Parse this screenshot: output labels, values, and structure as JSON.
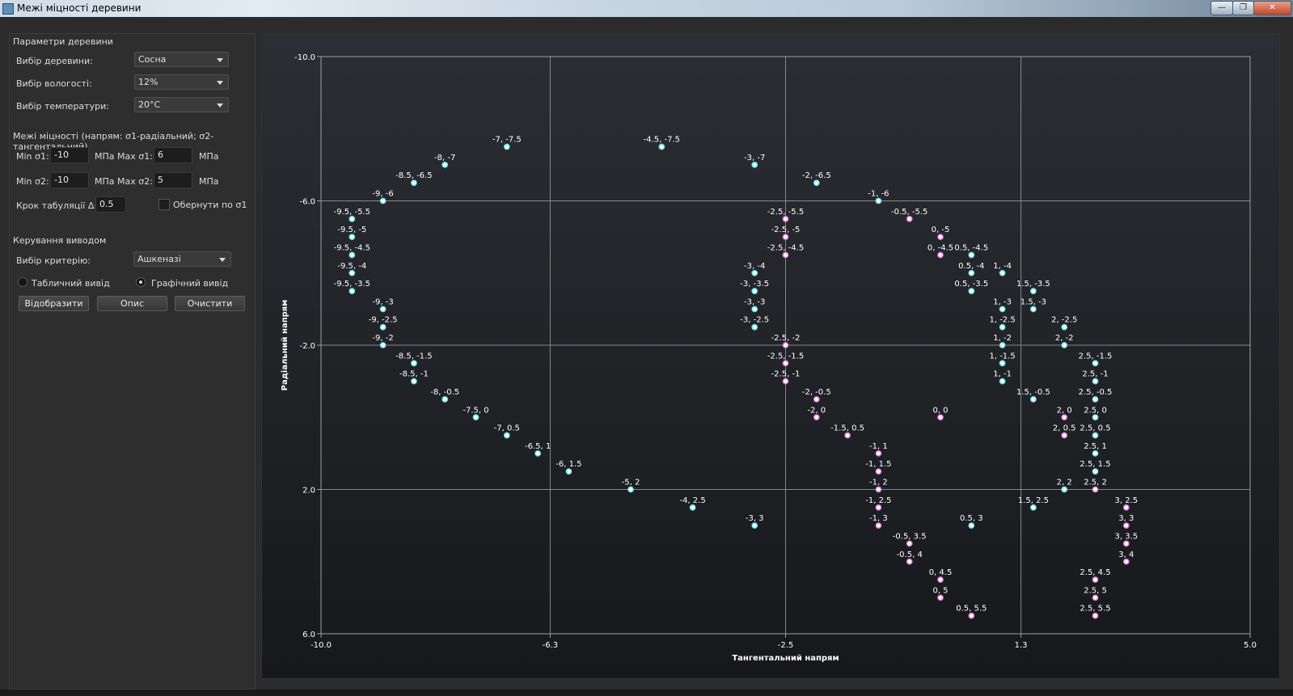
{
  "window": {
    "title": "Межі міцності деревини",
    "controls": {
      "minimize": "—",
      "maximize": "❐",
      "close": "✕"
    }
  },
  "wood": {
    "group_title": "Параметри деревини",
    "species_label": "Вибір деревини:",
    "species_value": "Сосна",
    "humidity_label": "Вибір вологості:",
    "humidity_value": "12%",
    "temperature_label": "Вибір температури:",
    "temperature_value": "20°C"
  },
  "limits": {
    "group_title": "Межі міцності (напрям: σ1-радіальний; σ2-тангентальний)",
    "min_s1_label": "Min σ1:",
    "min_s1": "-10",
    "max_s1_label": "Max σ1:",
    "max_s1": "6",
    "min_s2_label": "Min σ2:",
    "min_s2": "-10",
    "max_s2_label": "Max σ2:",
    "max_s2": "5",
    "unit": "МПа",
    "step_label": "Крок табуляції Δ:",
    "step": "0.5",
    "invert_label": "Обернути по σ1"
  },
  "output": {
    "group_title": "Керування виводом",
    "criterion_label": "Вибір критерію:",
    "criterion_value": "Ашкеназі",
    "table_radio": "Табличний вивід",
    "graph_radio": "Графічний вивід",
    "show_button": "Відобразити",
    "describe_button": "Опис",
    "clear_button": "Очистити"
  },
  "colors": {
    "cyan": "#5fe0e6",
    "magenta": "#e070d8",
    "grid": "#a0a0a0",
    "axis_text": "#ffffff"
  },
  "chart_data": {
    "type": "scatter",
    "xlabel": "Тангентальний напрям",
    "ylabel": "Радіальний напрям",
    "xlim": [
      -10,
      5
    ],
    "ylim": [
      -10,
      6
    ],
    "y_inverted": true,
    "xticks": [
      "-10.0",
      "-6.3",
      "-2.5",
      "1.3",
      "5.0"
    ],
    "yticks": [
      "-10.0",
      "-6.0",
      "-2.0",
      "2.0",
      "6.0"
    ],
    "series": [
      {
        "name": "cyan",
        "color": "#5fe0e6",
        "points": [
          [
            -7,
            -7.5
          ],
          [
            -8,
            -7
          ],
          [
            -8.5,
            -6.5
          ],
          [
            -9,
            -6
          ],
          [
            -9.5,
            -5.5
          ],
          [
            -9.5,
            -5
          ],
          [
            -9.5,
            -4.5
          ],
          [
            -9.5,
            -4
          ],
          [
            -9.5,
            -3.5
          ],
          [
            -9,
            -3
          ],
          [
            -9,
            -2.5
          ],
          [
            -9,
            -2
          ],
          [
            -8.5,
            -1.5
          ],
          [
            -8.5,
            -1
          ],
          [
            -8,
            -0.5
          ],
          [
            -7.5,
            0
          ],
          [
            -7,
            0.5
          ],
          [
            -6.5,
            1
          ],
          [
            -6,
            1.5
          ],
          [
            -5,
            2
          ],
          [
            -4,
            2.5
          ],
          [
            -3,
            3
          ],
          [
            -4.5,
            -7.5
          ],
          [
            -3,
            -7
          ],
          [
            -2,
            -6.5
          ],
          [
            -1,
            -6
          ],
          [
            -3,
            -4
          ],
          [
            -3,
            -3.5
          ],
          [
            -3,
            -3
          ],
          [
            -3,
            -2.5
          ],
          [
            0.5,
            -4.5
          ],
          [
            0.5,
            -4
          ],
          [
            0.5,
            -3.5
          ],
          [
            1,
            -4
          ],
          [
            1,
            -3
          ],
          [
            1,
            -2.5
          ],
          [
            1,
            -2
          ],
          [
            1,
            -1.5
          ],
          [
            1,
            -1
          ],
          [
            1.5,
            -3.5
          ],
          [
            1.5,
            -3
          ],
          [
            1.5,
            -0.5
          ],
          [
            1.5,
            2.5
          ],
          [
            2,
            -2.5
          ],
          [
            2,
            -2
          ],
          [
            2,
            2
          ],
          [
            2.5,
            -1.5
          ],
          [
            2.5,
            -1
          ],
          [
            2.5,
            -0.5
          ],
          [
            2.5,
            0
          ],
          [
            2.5,
            0.5
          ],
          [
            2.5,
            1
          ],
          [
            2.5,
            1.5
          ],
          [
            0.5,
            3
          ]
        ]
      },
      {
        "name": "magenta",
        "color": "#e070d8",
        "points": [
          [
            -0.5,
            -5.5
          ],
          [
            0,
            -5
          ],
          [
            0,
            -4.5
          ],
          [
            -2.5,
            -5.5
          ],
          [
            -2.5,
            -5
          ],
          [
            -2.5,
            -4.5
          ],
          [
            -2.5,
            -2
          ],
          [
            -2.5,
            -1.5
          ],
          [
            -2.5,
            -1
          ],
          [
            -2,
            -0.5
          ],
          [
            -2,
            0
          ],
          [
            -1.5,
            0.5
          ],
          [
            -1,
            1
          ],
          [
            -1,
            1.5
          ],
          [
            -1,
            2
          ],
          [
            -1,
            2.5
          ],
          [
            -1,
            3
          ],
          [
            -0.5,
            3.5
          ],
          [
            -0.5,
            4
          ],
          [
            0,
            4.5
          ],
          [
            0,
            5
          ],
          [
            0.5,
            5.5
          ],
          [
            0,
            0
          ],
          [
            2,
            0
          ],
          [
            2,
            0.5
          ],
          [
            2.5,
            2
          ],
          [
            3,
            2.5
          ],
          [
            3,
            3
          ],
          [
            3,
            3.5
          ],
          [
            3,
            4
          ],
          [
            2.5,
            4.5
          ],
          [
            2.5,
            5
          ],
          [
            2.5,
            5.5
          ]
        ]
      }
    ]
  }
}
